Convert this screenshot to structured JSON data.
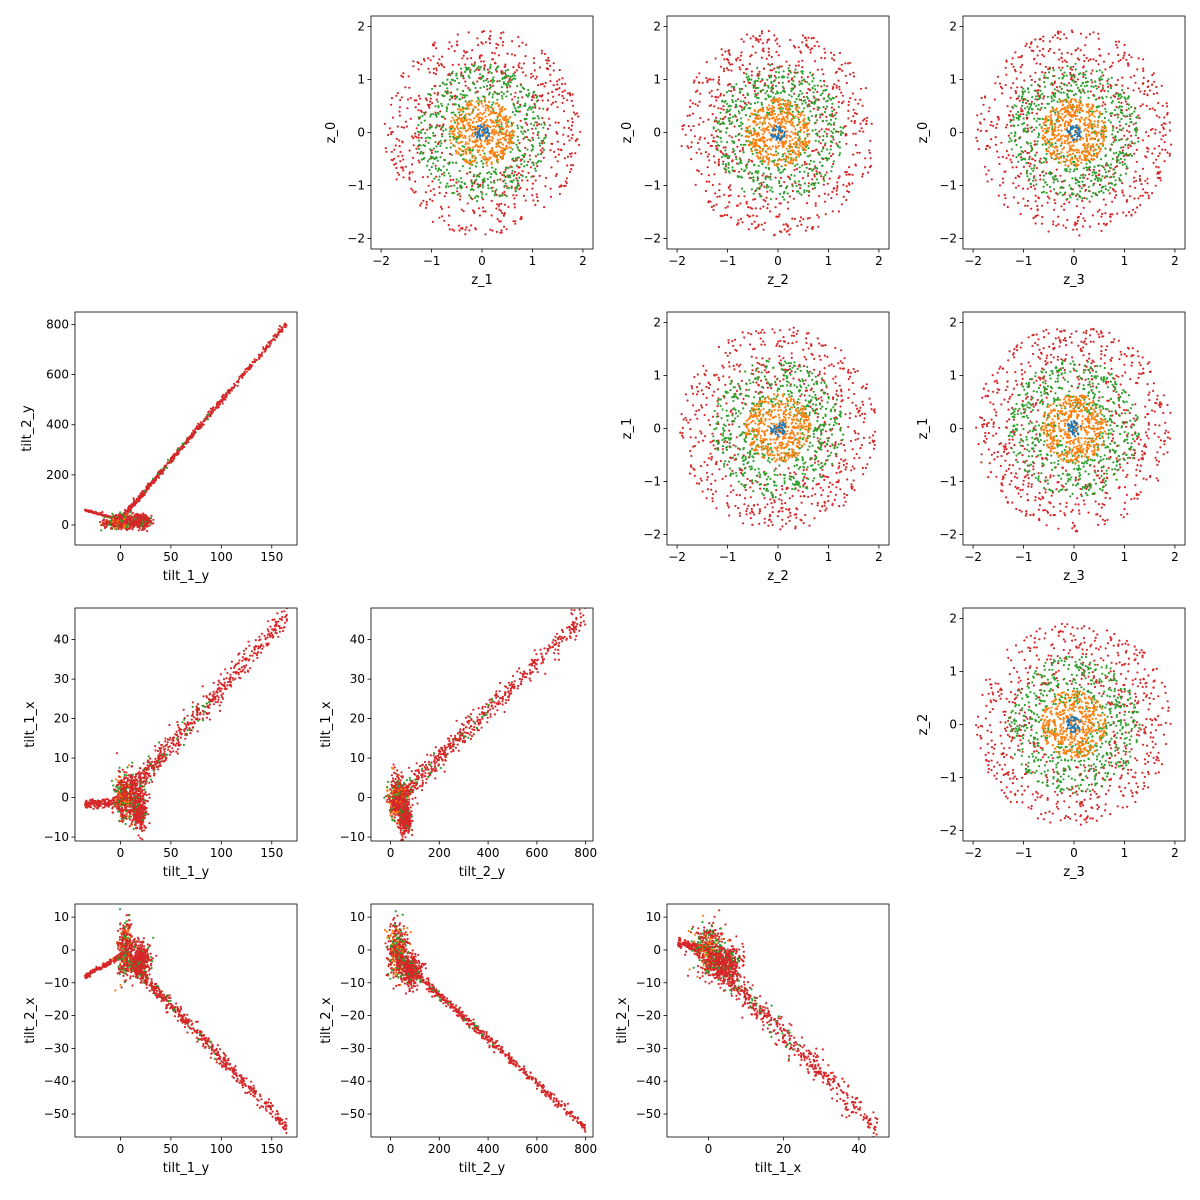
{
  "chart_data": [
    {
      "type": "scatter",
      "row": 0,
      "col": 1,
      "xlabel": "z_1",
      "ylabel": "z_0",
      "xlim": [
        -2.2,
        2.2
      ],
      "ylim": [
        -2.2,
        2.2
      ],
      "xticks": [
        -2,
        -1,
        0,
        1,
        2
      ],
      "yticks": [
        -2,
        -1,
        0,
        1,
        2
      ],
      "gen": {
        "kind": "ring"
      }
    },
    {
      "type": "scatter",
      "row": 0,
      "col": 2,
      "xlabel": "z_2",
      "ylabel": "z_0",
      "xlim": [
        -2.2,
        2.2
      ],
      "ylim": [
        -2.2,
        2.2
      ],
      "xticks": [
        -2,
        -1,
        0,
        1,
        2
      ],
      "yticks": [
        -2,
        -1,
        0,
        1,
        2
      ],
      "gen": {
        "kind": "ring"
      }
    },
    {
      "type": "scatter",
      "row": 0,
      "col": 3,
      "xlabel": "z_3",
      "ylabel": "z_0",
      "xlim": [
        -2.2,
        2.2
      ],
      "ylim": [
        -2.2,
        2.2
      ],
      "xticks": [
        -2,
        -1,
        0,
        1,
        2
      ],
      "yticks": [
        -2,
        -1,
        0,
        1,
        2
      ],
      "gen": {
        "kind": "ring"
      }
    },
    {
      "type": "scatter",
      "row": 1,
      "col": 2,
      "xlabel": "z_2",
      "ylabel": "z_1",
      "xlim": [
        -2.2,
        2.2
      ],
      "ylim": [
        -2.2,
        2.2
      ],
      "xticks": [
        -2,
        -1,
        0,
        1,
        2
      ],
      "yticks": [
        -2,
        -1,
        0,
        1,
        2
      ],
      "gen": {
        "kind": "ring"
      }
    },
    {
      "type": "scatter",
      "row": 1,
      "col": 3,
      "xlabel": "z_3",
      "ylabel": "z_1",
      "xlim": [
        -2.2,
        2.2
      ],
      "ylim": [
        -2.2,
        2.2
      ],
      "xticks": [
        -2,
        -1,
        0,
        1,
        2
      ],
      "yticks": [
        -2,
        -1,
        0,
        1,
        2
      ],
      "gen": {
        "kind": "ring"
      }
    },
    {
      "type": "scatter",
      "row": 2,
      "col": 3,
      "xlabel": "z_3",
      "ylabel": "z_2",
      "xlim": [
        -2.2,
        2.2
      ],
      "ylim": [
        -2.2,
        2.2
      ],
      "xticks": [
        -2,
        -1,
        0,
        1,
        2
      ],
      "yticks": [
        -2,
        -1,
        0,
        1,
        2
      ],
      "gen": {
        "kind": "ring"
      }
    },
    {
      "type": "scatter",
      "row": 1,
      "col": 0,
      "xlabel": "tilt_1_y",
      "ylabel": "tilt_2_y",
      "xlim": [
        -45,
        175
      ],
      "ylim": [
        -80,
        850
      ],
      "xticks": [
        0,
        50,
        100,
        150
      ],
      "yticks": [
        0,
        200,
        400,
        600,
        800
      ],
      "gen": {
        "kind": "tilt",
        "seg": [
          [
            0,
            20
          ],
          [
            165,
            805
          ]
        ],
        "spread": 6,
        "arm": [
          [
            -35,
            60
          ],
          [
            0,
            20
          ]
        ],
        "blob": [
          [
            2,
            10,
            18,
            30
          ]
        ],
        "blobs": [
          [
            20,
            15,
            10,
            25
          ]
        ],
        "seed": 7
      }
    },
    {
      "type": "scatter",
      "row": 2,
      "col": 0,
      "xlabel": "tilt_1_y",
      "ylabel": "tilt_1_x",
      "xlim": [
        -45,
        175
      ],
      "ylim": [
        -11,
        48
      ],
      "xticks": [
        0,
        50,
        100,
        150
      ],
      "yticks": [
        -10,
        0,
        10,
        20,
        30,
        40
      ],
      "gen": {
        "kind": "tilt",
        "seg": [
          [
            10,
            2
          ],
          [
            165,
            46
          ]
        ],
        "spread": 1.8,
        "arm": [
          [
            -35,
            -1.5
          ],
          [
            0,
            -1.5
          ]
        ],
        "blob": [
          [
            3,
            0,
            8,
            6
          ]
        ],
        "blobs": [
          [
            18,
            -3,
            8,
            5
          ]
        ],
        "seed": 11
      }
    },
    {
      "type": "scatter",
      "row": 2,
      "col": 1,
      "xlabel": "tilt_2_y",
      "ylabel": "tilt_1_x",
      "xlim": [
        -80,
        830
      ],
      "ylim": [
        -11,
        48
      ],
      "xticks": [
        0,
        200,
        400,
        600,
        800
      ],
      "yticks": [
        -10,
        0,
        10,
        20,
        30,
        40
      ],
      "gen": {
        "kind": "tilt",
        "seg": [
          [
            20,
            -1
          ],
          [
            800,
            46
          ]
        ],
        "spread": 1.6,
        "arm": [
          [
            0,
            -3
          ],
          [
            60,
            2
          ]
        ],
        "blob": [
          [
            30,
            0,
            40,
            6
          ]
        ],
        "blobs": [
          [
            60,
            -5,
            25,
            4
          ]
        ],
        "seed": 13
      }
    },
    {
      "type": "scatter",
      "row": 3,
      "col": 0,
      "xlabel": "tilt_1_y",
      "ylabel": "tilt_2_x",
      "xlim": [
        -45,
        175
      ],
      "ylim": [
        -57,
        14
      ],
      "xticks": [
        0,
        50,
        100,
        150
      ],
      "yticks": [
        -50,
        -40,
        -30,
        -20,
        -10,
        0,
        10
      ],
      "gen": {
        "kind": "tilt",
        "seg": [
          [
            10,
            -4
          ],
          [
            165,
            -54
          ]
        ],
        "spread": 1.2,
        "arm": [
          [
            -35,
            -8
          ],
          [
            0,
            -2
          ]
        ],
        "blob": [
          [
            5,
            0,
            8,
            8
          ]
        ],
        "blobs": [
          [
            20,
            -3,
            10,
            5
          ]
        ],
        "seed": 17
      }
    },
    {
      "type": "scatter",
      "row": 3,
      "col": 1,
      "xlabel": "tilt_2_y",
      "ylabel": "tilt_2_x",
      "xlim": [
        -80,
        830
      ],
      "ylim": [
        -57,
        14
      ],
      "xticks": [
        0,
        200,
        400,
        600,
        800
      ],
      "yticks": [
        -50,
        -40,
        -30,
        -20,
        -10,
        0,
        10
      ],
      "gen": {
        "kind": "tilt",
        "seg": [
          [
            40,
            -3
          ],
          [
            800,
            -54
          ]
        ],
        "spread": 0.8,
        "arm": [
          [
            0,
            0
          ],
          [
            80,
            -6
          ]
        ],
        "blob": [
          [
            30,
            0,
            40,
            8
          ]
        ],
        "blobs": [
          [
            80,
            -6,
            40,
            5
          ]
        ],
        "seed": 19
      }
    },
    {
      "type": "scatter",
      "row": 3,
      "col": 2,
      "xlabel": "tilt_1_x",
      "ylabel": "tilt_2_x",
      "xlim": [
        -11,
        48
      ],
      "ylim": [
        -57,
        14
      ],
      "xticks": [
        0,
        20,
        40
      ],
      "yticks": [
        -50,
        -40,
        -30,
        -20,
        -10,
        0,
        10
      ],
      "gen": {
        "kind": "tilt",
        "seg": [
          [
            0,
            -2
          ],
          [
            45,
            -55
          ]
        ],
        "spread": 2.2,
        "arm": [
          [
            -8,
            2
          ],
          [
            0,
            0
          ]
        ],
        "blob": [
          [
            0,
            0,
            4,
            8
          ]
        ],
        "blobs": [
          [
            5,
            -4,
            4,
            5
          ]
        ],
        "seed": 23
      }
    }
  ],
  "colors": {
    "blue": "#1f77b4",
    "orange": "#ff7f0e",
    "green": "#2ca02c",
    "red": "#d62728",
    "axis": "#000000"
  }
}
